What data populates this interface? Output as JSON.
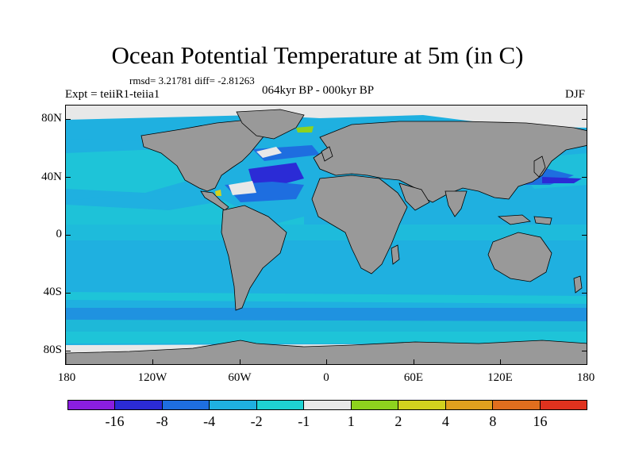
{
  "title": "Ocean Potential Temperature at 5m (in C)",
  "stats": "rmsd= 3.21781 diff= -2.81263",
  "expt": "Expt = teiiR1-teiia1",
  "period": "064kyr BP - 000kyr BP",
  "season": "DJF",
  "map": {
    "lat_labels": [
      "80N",
      "40N",
      "0",
      "40S",
      "80S"
    ],
    "lon_labels": [
      "180",
      "120W",
      "60W",
      "0",
      "60E",
      "120E",
      "180"
    ],
    "land_color": "#999999",
    "ocean_base_color": "#1fb0e0"
  },
  "colorbar": {
    "colors": [
      "#8a1ee0",
      "#2b2bd6",
      "#1e6ee0",
      "#1fb0e0",
      "#1ed2d2",
      "#e8e8e8",
      "#8ed21e",
      "#d2d21e",
      "#e0a01e",
      "#e06e1e",
      "#e0321e"
    ],
    "labels": [
      "-16",
      "-8",
      "-4",
      "-2",
      "-1",
      "1",
      "2",
      "4",
      "8",
      "16"
    ]
  }
}
